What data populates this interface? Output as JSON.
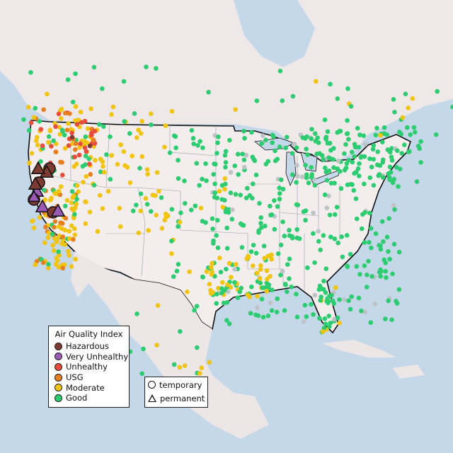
{
  "legend": {
    "title": "Air Quality Index",
    "categories": [
      {
        "label": "Hazardous",
        "color": "#7e3b33"
      },
      {
        "label": "Very Unhealthy",
        "color": "#9b59b6"
      },
      {
        "label": "Unhealthy",
        "color": "#e74c3c"
      },
      {
        "label": "USG",
        "color": "#e67e22"
      },
      {
        "label": "Moderate",
        "color": "#f1c40f"
      },
      {
        "label": "Good",
        "color": "#2ecc71"
      }
    ]
  },
  "type_legend": {
    "items": [
      {
        "label": "temporary",
        "shape": "circle"
      },
      {
        "label": "permanent",
        "shape": "triangle"
      }
    ]
  },
  "colors": {
    "water": "#c5d8ea",
    "land": "#f2ecec",
    "land_outside": "#ece6e6",
    "no_data": "#bdc3c7"
  }
}
